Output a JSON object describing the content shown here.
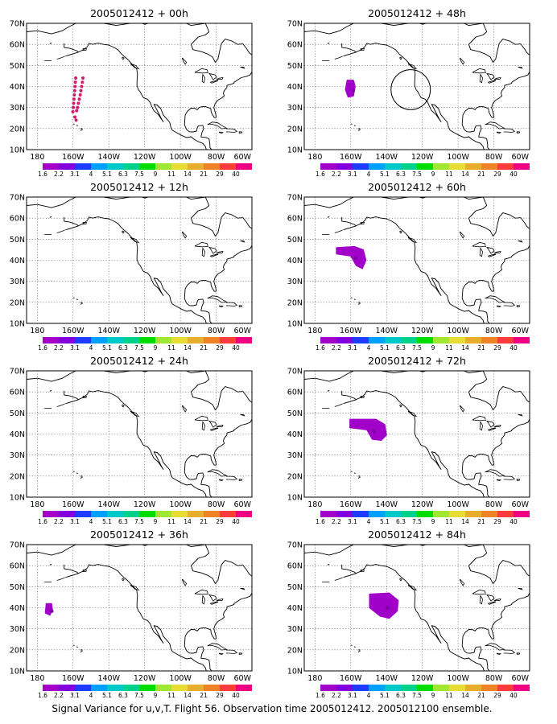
{
  "figure": {
    "caption": "Signal Variance for u,v,T. Flight 56. Observation time 2005012412. 2005012100 ensemble."
  },
  "axes": {
    "lat_labels": [
      "70N",
      "60N",
      "50N",
      "40N",
      "30N",
      "20N",
      "10N"
    ],
    "lon_labels": [
      "180",
      "160W",
      "140W",
      "120W",
      "100W",
      "80W",
      "60W"
    ],
    "lat_values": [
      70,
      60,
      50,
      40,
      30,
      20,
      10
    ],
    "lon_values": [
      -180,
      -160,
      -140,
      -120,
      -100,
      -80,
      -60
    ],
    "lon_range": [
      -186,
      -60
    ],
    "lat_range": [
      10,
      70
    ],
    "grid": "dotted"
  },
  "colorbar": {
    "labels": [
      "1.6",
      "2.2",
      "3.1",
      "4",
      "5.1",
      "6.3",
      "7.5",
      "9",
      "11",
      "14",
      "21",
      "29",
      "40"
    ],
    "colors": [
      "#a000c8",
      "#8200dc",
      "#1e3cff",
      "#00a0ff",
      "#00c8c8",
      "#00d28c",
      "#00dc00",
      "#a0e632",
      "#e6dc32",
      "#e6af2d",
      "#f08228",
      "#fa3c3c",
      "#f00082"
    ]
  },
  "panels": [
    {
      "title": "2005012412 + 00h",
      "features": [
        {
          "kind": "dots",
          "color": "#d2196e",
          "points": [
            [
              -158.5,
              44
            ],
            [
              -158.7,
              42
            ],
            [
              -158.9,
              40
            ],
            [
              -159.1,
              38
            ],
            [
              -159.3,
              36
            ],
            [
              -159.5,
              34
            ],
            [
              -159.7,
              32
            ],
            [
              -159.9,
              30
            ],
            [
              -160.1,
              28
            ],
            [
              -154.5,
              44
            ],
            [
              -154.8,
              42
            ],
            [
              -155.2,
              40
            ],
            [
              -155.6,
              38
            ],
            [
              -156.0,
              36
            ],
            [
              -156.5,
              34
            ],
            [
              -157.0,
              32
            ],
            [
              -157.5,
              30
            ],
            [
              -158.0,
              28.5
            ],
            [
              -159.0,
              25.5
            ],
            [
              -158.3,
              24
            ]
          ]
        }
      ]
    },
    {
      "title": "2005012412 + 48h",
      "features": [
        {
          "kind": "blob",
          "color": "#a000c8",
          "points": [
            [
              -162,
              43
            ],
            [
              -158.5,
              43
            ],
            [
              -157.5,
              40
            ],
            [
              -158.5,
              35.5
            ],
            [
              -161.5,
              35
            ],
            [
              -163,
              38.5
            ]
          ]
        },
        {
          "kind": "ring",
          "center": [
            -126.5,
            38.5
          ],
          "radius": [
            11,
            9.5
          ]
        }
      ]
    },
    {
      "title": "2005012412 + 12h",
      "features": []
    },
    {
      "title": "2005012412 + 60h",
      "features": [
        {
          "kind": "blob",
          "color": "#a000c8",
          "points": [
            [
              -168,
              46
            ],
            [
              -158,
              46.5
            ],
            [
              -153,
              45
            ],
            [
              -151.5,
              40
            ],
            [
              -153.5,
              36
            ],
            [
              -157,
              37.5
            ],
            [
              -160,
              42
            ],
            [
              -168,
              43
            ]
          ]
        }
      ]
    },
    {
      "title": "2005012412 + 24h",
      "features": []
    },
    {
      "title": "2005012412 + 72h",
      "features": [
        {
          "kind": "blob",
          "color": "#a000c8",
          "points": [
            [
              -160.5,
              47
            ],
            [
              -146,
              47
            ],
            [
              -141,
              44.5
            ],
            [
              -140,
              39.5
            ],
            [
              -143,
              37
            ],
            [
              -148,
              37.5
            ],
            [
              -151,
              42
            ],
            [
              -160.5,
              43
            ]
          ]
        }
      ]
    },
    {
      "title": "2005012412 + 36h",
      "features": [
        {
          "kind": "blob",
          "color": "#a000c8",
          "points": [
            [
              -175,
              42
            ],
            [
              -172,
              42
            ],
            [
              -171.5,
              39
            ],
            [
              -173,
              36.5
            ],
            [
              -175.5,
              37.5
            ]
          ]
        }
      ]
    },
    {
      "title": "2005012412 + 84h",
      "features": [
        {
          "kind": "blob",
          "color": "#a000c8",
          "points": [
            [
              -149.5,
              46.5
            ],
            [
              -138.5,
              47
            ],
            [
              -133.5,
              43.5
            ],
            [
              -134,
              38.5
            ],
            [
              -138.5,
              35
            ],
            [
              -143.5,
              36
            ],
            [
              -149.5,
              40
            ]
          ]
        }
      ]
    }
  ]
}
